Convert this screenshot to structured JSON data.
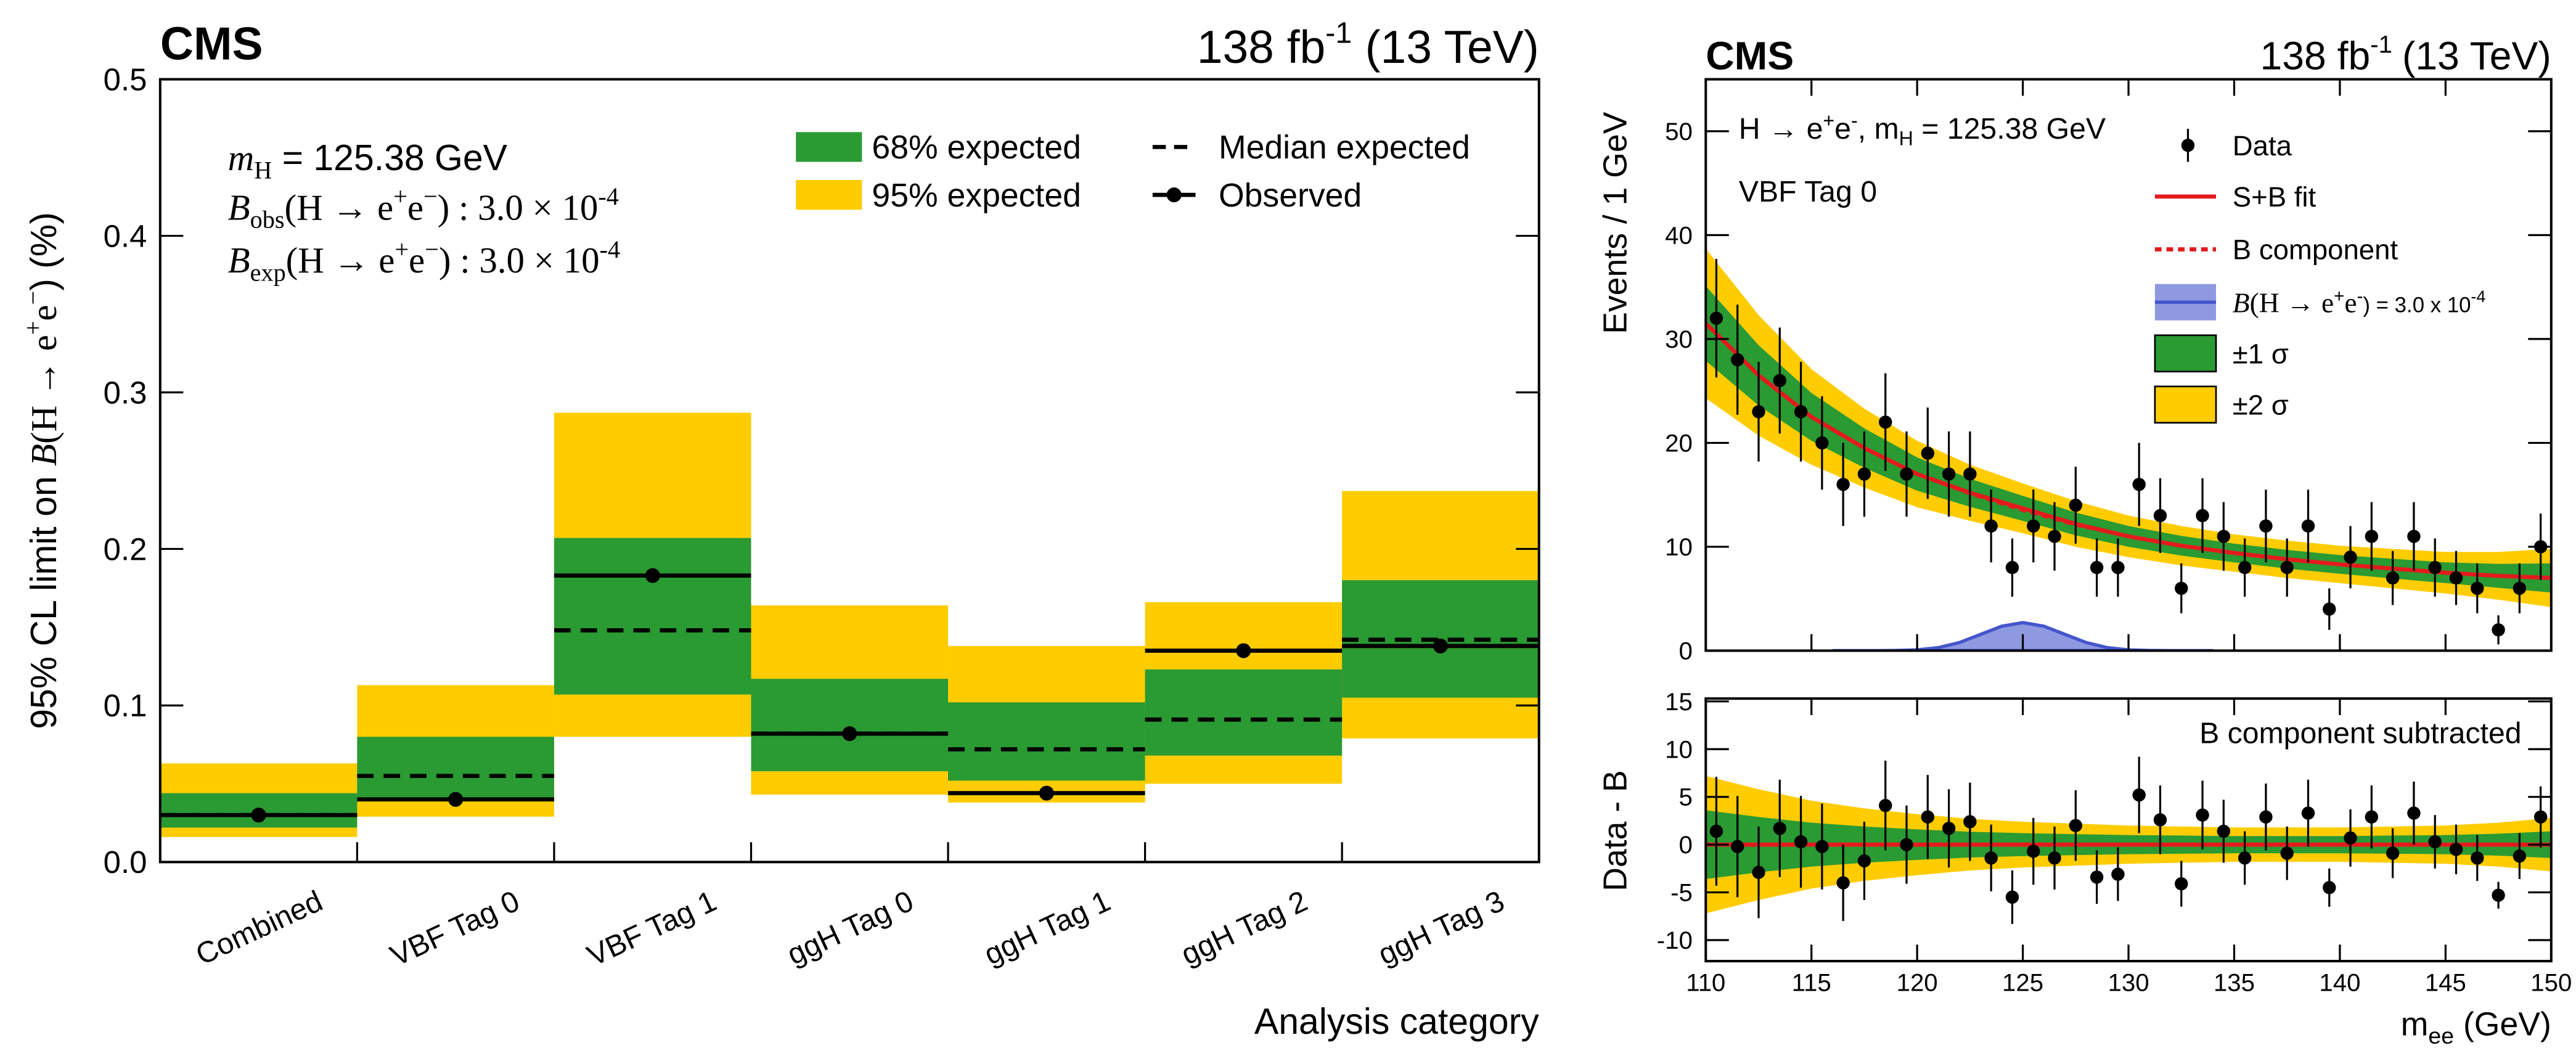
{
  "chart_data": [
    {
      "type": "bar",
      "title": "CMS",
      "lumi": [
        "138 fb",
        "-1",
        "(13 TeV)"
      ],
      "ylabel": [
        "95% CL limit on ",
        "B",
        "(H → e",
        "+",
        "e",
        "−",
        ") (%)"
      ],
      "xlabel": "Analysis category",
      "annotations": [
        [
          "m",
          "H",
          " = 125.38 GeV"
        ],
        [
          "B",
          "obs",
          "(H → e",
          "+",
          "e",
          "−",
          ") : 3.0 × 10",
          "-4"
        ],
        [
          "B",
          "exp",
          "(H → e",
          "+",
          "e",
          "−",
          ") : 3.0 × 10",
          "-4"
        ]
      ],
      "categories": [
        "Combined",
        "VBF Tag 0",
        "VBF Tag 1",
        "ggH Tag 0",
        "ggH Tag 1",
        "ggH Tag 2",
        "ggH Tag 3"
      ],
      "ylim": [
        0,
        0.5
      ],
      "yticks": [
        {
          "value": 0,
          "label": "0.0"
        },
        0.1,
        0.2,
        0.3,
        0.4,
        0.5
      ],
      "series": [
        {
          "name": "68% expected",
          "color": "#2a9a33",
          "low": [
            0.022,
            0.04,
            0.107,
            0.058,
            0.052,
            0.068,
            0.105
          ],
          "high": [
            0.044,
            0.08,
            0.207,
            0.117,
            0.102,
            0.123,
            0.18
          ]
        },
        {
          "name": "95% expected",
          "color": "#ffcc00",
          "low": [
            0.016,
            0.029,
            0.08,
            0.043,
            0.038,
            0.05,
            0.079
          ],
          "high": [
            0.063,
            0.113,
            0.287,
            0.164,
            0.138,
            0.166,
            0.237
          ]
        },
        {
          "name": "Median expected",
          "color": "#000000",
          "values": [
            0.03,
            0.055,
            0.148,
            0.082,
            0.072,
            0.091,
            0.142
          ]
        },
        {
          "name": "Observed",
          "color": "#000000",
          "values": [
            0.03,
            0.04,
            0.183,
            0.082,
            0.044,
            0.135,
            0.138
          ]
        }
      ]
    },
    {
      "type": "scatter",
      "title": "CMS",
      "lumi": [
        "138 fb",
        "-1",
        "(13 TeV)"
      ],
      "ylabel": "Events / 1 GeV",
      "annotations": [
        [
          "H → e",
          "+",
          "e",
          "-",
          ", m",
          "H",
          " = 125.38 GeV"
        ],
        [
          "VBF Tag 0"
        ]
      ],
      "xlim": [
        110,
        150
      ],
      "xticks": [
        110,
        115,
        120,
        125,
        130,
        135,
        140,
        145,
        150
      ],
      "ylim": [
        0,
        55
      ],
      "yticks": [
        0,
        10,
        20,
        30,
        40,
        50
      ],
      "name": "Data",
      "color": "#000000",
      "x": [
        110.5,
        111.5,
        112.5,
        113.5,
        114.5,
        115.5,
        116.5,
        117.5,
        118.5,
        119.5,
        120.5,
        121.5,
        122.5,
        123.5,
        124.5,
        125.5,
        126.5,
        127.5,
        128.5,
        129.5,
        130.5,
        131.5,
        132.5,
        133.5,
        134.5,
        135.5,
        136.5,
        137.5,
        138.5,
        139.5,
        140.5,
        141.5,
        142.5,
        143.5,
        144.5,
        145.5,
        146.5,
        147.5,
        148.5,
        149.5
      ],
      "values": [
        32,
        28,
        23,
        26,
        23,
        20,
        16,
        17,
        22,
        17,
        19,
        17,
        17,
        12,
        8,
        12,
        11,
        14,
        8,
        8,
        16,
        13,
        6,
        13,
        11,
        8,
        12,
        8,
        12,
        4,
        9,
        11,
        7,
        11,
        8,
        7,
        6,
        2,
        6,
        10
      ],
      "errors": [
        5.7,
        5.3,
        4.8,
        5.1,
        4.8,
        4.5,
        4,
        4.1,
        4.7,
        4.1,
        4.4,
        4.1,
        4.1,
        3.5,
        2.8,
        3.5,
        3.3,
        3.7,
        2.8,
        2.8,
        4,
        3.6,
        2.4,
        3.6,
        3.3,
        2.8,
        3.5,
        2.8,
        3.5,
        2,
        3,
        3.3,
        2.6,
        3.3,
        2.8,
        2.6,
        2.4,
        1.4,
        2.4,
        3.2
      ],
      "fit": {
        "name": "S+B fit",
        "color": "#e41a1c",
        "x": [
          110,
          112.5,
          115,
          117.5,
          120,
          122.5,
          125,
          127.5,
          130,
          132.5,
          135,
          137.5,
          140,
          142.5,
          145,
          147.5,
          150
        ],
        "values": [
          31.5,
          26.5,
          22.5,
          19.5,
          17.0,
          15.2,
          13.7,
          12.2,
          11.0,
          10.1,
          9.4,
          8.8,
          8.3,
          7.9,
          7.5,
          7.2,
          7.0
        ]
      },
      "background": {
        "name": "B component",
        "color": "#e41a1c",
        "x": [
          110,
          112.5,
          115,
          117.5,
          120,
          122.5,
          125,
          127.5,
          130,
          132.5,
          135,
          137.5,
          140,
          142.5,
          145,
          147.5,
          150
        ],
        "values": [
          31.5,
          26.5,
          22.5,
          19.5,
          17.0,
          15.1,
          13.5,
          12.1,
          11.0,
          10.1,
          9.4,
          8.8,
          8.3,
          7.9,
          7.5,
          7.2,
          7.0
        ]
      },
      "signal": {
        "name": [
          "B",
          "(H → e",
          "+",
          "e",
          "-",
          ") = 3.0 x 10",
          "-4"
        ],
        "color": "#4455cc",
        "x": [
          116,
          117,
          118,
          119,
          120,
          121,
          122,
          123,
          124,
          125,
          126,
          127,
          128,
          129,
          130,
          131,
          132,
          133,
          134
        ],
        "values": [
          0,
          0,
          0,
          0.02,
          0.08,
          0.29,
          0.78,
          1.56,
          2.35,
          2.7,
          2.35,
          1.56,
          0.78,
          0.29,
          0.08,
          0.02,
          0,
          0,
          0
        ]
      },
      "sigma1": {
        "name": "±1 σ",
        "color": "#2a9a33",
        "values": [
          3.6,
          2.9,
          2.3,
          1.9,
          1.6,
          1.35,
          1.2,
          1.1,
          1.0,
          0.95,
          0.9,
          0.9,
          0.9,
          0.95,
          1.0,
          1.15,
          1.4
        ]
      },
      "sigma2": {
        "name": "±2 σ",
        "color": "#ffcc00",
        "values": [
          7.2,
          5.8,
          4.6,
          3.8,
          3.2,
          2.7,
          2.4,
          2.2,
          2.0,
          1.9,
          1.8,
          1.8,
          1.8,
          1.9,
          2.0,
          2.3,
          2.8
        ]
      }
    },
    {
      "type": "scatter",
      "ylabel": "Data - B",
      "xlabel": [
        "m",
        "ee",
        " (GeV)"
      ],
      "annotations": [
        [
          "B component subtracted"
        ]
      ],
      "xlim": [
        110,
        150
      ],
      "xticks": [
        110,
        115,
        120,
        125,
        130,
        135,
        140,
        145,
        150
      ],
      "ylim": [
        -12.2,
        15.3
      ],
      "yticks": [
        -10,
        -5,
        0,
        5,
        10,
        15
      ],
      "color": "#000000",
      "x": [
        110.5,
        111.5,
        112.5,
        113.5,
        114.5,
        115.5,
        116.5,
        117.5,
        118.5,
        119.5,
        120.5,
        121.5,
        122.5,
        123.5,
        124.5,
        125.5,
        126.5,
        127.5,
        128.5,
        129.5,
        130.5,
        131.5,
        132.5,
        133.5,
        134.5,
        135.5,
        136.5,
        137.5,
        138.5,
        139.5,
        140.5,
        141.5,
        142.5,
        143.5,
        144.5,
        145.5,
        146.5,
        147.5,
        148.5,
        149.5
      ],
      "values": [
        1.4,
        -0.2,
        -2.9,
        1.7,
        0.3,
        -0.2,
        -4,
        -1.7,
        4.1,
        0,
        2.9,
        1.7,
        2.4,
        -1.4,
        -5.5,
        -0.7,
        -1.4,
        2,
        -3.4,
        -3.1,
        5.2,
        2.6,
        -4.1,
        3.1,
        1.4,
        -1.4,
        2.9,
        -0.9,
        3.3,
        -4.5,
        0.7,
        2.9,
        -0.9,
        3.3,
        0.3,
        -0.5,
        -1.4,
        -5.3,
        -1.2,
        2.9
      ],
      "errors": [
        5.7,
        5.3,
        4.8,
        5.1,
        4.8,
        4.5,
        4,
        4.1,
        4.7,
        4.1,
        4.4,
        4.1,
        4.1,
        3.5,
        2.8,
        3.5,
        3.3,
        3.7,
        2.8,
        2.8,
        4,
        3.6,
        2.4,
        3.6,
        3.3,
        2.8,
        3.5,
        2.8,
        3.5,
        2,
        3,
        3.3,
        2.6,
        3.3,
        2.8,
        2.6,
        2.4,
        1.4,
        2.4,
        3.2
      ],
      "sigma1": {
        "color": "#2a9a33",
        "x": [
          110,
          112.5,
          115,
          117.5,
          120,
          122.5,
          125,
          127.5,
          130,
          132.5,
          135,
          137.5,
          140,
          142.5,
          145,
          147.5,
          150
        ],
        "values": [
          3.6,
          2.9,
          2.3,
          1.9,
          1.6,
          1.35,
          1.2,
          1.1,
          1.0,
          0.95,
          0.9,
          0.9,
          0.9,
          0.95,
          1.0,
          1.15,
          1.4
        ]
      },
      "sigma2": {
        "color": "#ffcc00",
        "x": [
          110,
          112.5,
          115,
          117.5,
          120,
          122.5,
          125,
          127.5,
          130,
          132.5,
          135,
          137.5,
          140,
          142.5,
          145,
          147.5,
          150
        ],
        "values": [
          7.2,
          5.8,
          4.6,
          3.8,
          3.2,
          2.7,
          2.4,
          2.2,
          2.0,
          1.9,
          1.8,
          1.8,
          1.8,
          1.9,
          2.0,
          2.3,
          2.8
        ]
      }
    }
  ]
}
